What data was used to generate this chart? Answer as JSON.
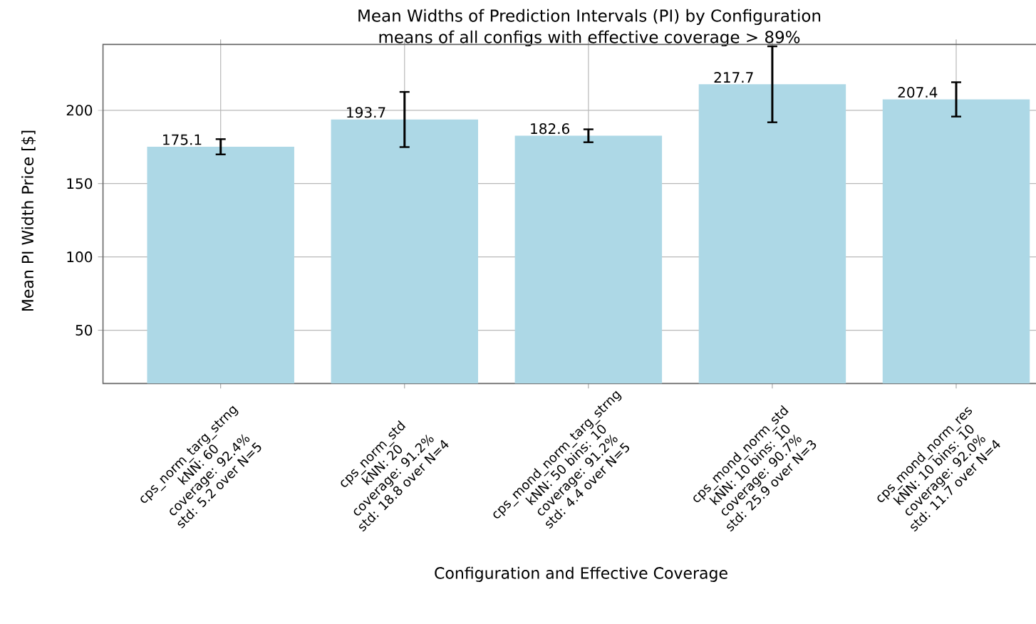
{
  "chart_data": {
    "type": "bar",
    "title": "Mean Widths of Prediction Intervals (PI) by Configuration",
    "subtitle": "means of all configs with effective coverage > 89%",
    "xlabel": "Configuration and Effective Coverage",
    "ylabel": "Mean PI Width Price [$]",
    "categories": [
      "cps_norm_targ_strng\nkNN: 60\ncoverage: 92.4%\nstd: 5.2 over N=5",
      "cps_norm_std\nkNN: 20\ncoverage: 91.2%\nstd: 18.8 over N=4",
      "cps_mond_norm_targ_strng\nkNN: 50 bins: 10\ncoverage: 91.2%\nstd: 4.4 over N=5",
      "cps_mond_norm_std\nkNN: 10 bins: 10\ncoverage: 90.7%\nstd: 25.9 over N=3",
      "cps_mond_norm_res\nkNN: 10 bins: 10\ncoverage: 92.0%\nstd: 11.7 over N=4"
    ],
    "values": [
      175.1,
      193.7,
      182.6,
      217.7,
      207.4
    ],
    "errors": [
      5.2,
      18.8,
      4.4,
      25.9,
      11.7
    ],
    "color": "#add8e6",
    "data_labels": true,
    "grid": true,
    "ylim": [
      13.7,
      244.9
    ],
    "yticks": [
      50,
      100,
      150,
      200
    ]
  }
}
